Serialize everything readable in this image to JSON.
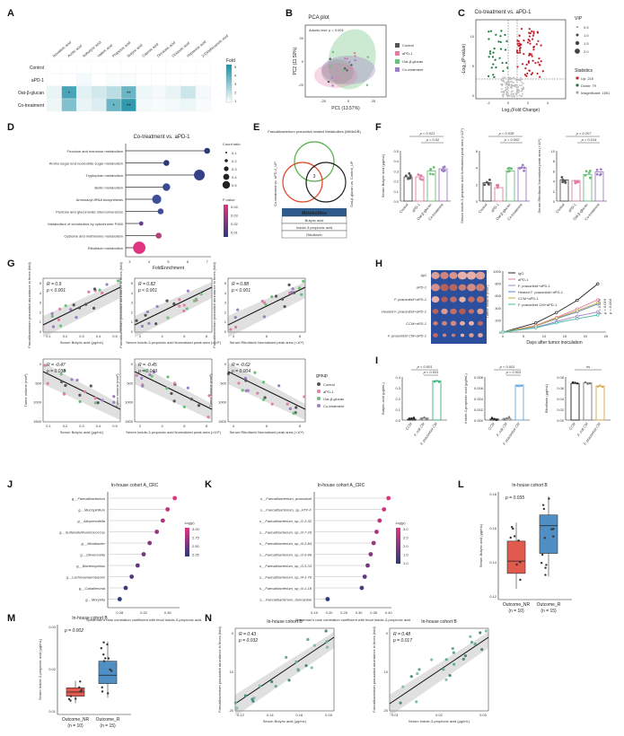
{
  "panels": {
    "A": {
      "label": "A",
      "columns": [
        "Isovaleric acid",
        "Acetic acid",
        "Isobutyric acid",
        "Valeric acid",
        "Propionic acid",
        "Butyric acid",
        "Caproic acid",
        "Decanoic acid",
        "Octanoic acid",
        "Heptanoic acid",
        "2-Ethylhexanoic acid"
      ],
      "rows": [
        "Control",
        "aPD-1",
        "Oat-β-glucan",
        "Co-treatment"
      ],
      "legend_title": "Fold",
      "legend_ticks": [
        "5",
        "4",
        "3",
        "2",
        "1"
      ],
      "cells": [
        [
          1,
          1,
          1,
          1,
          1,
          1,
          1,
          1,
          1,
          1,
          1
        ],
        [
          1,
          1,
          1.2,
          1,
          1.1,
          1.1,
          1,
          1,
          1,
          1,
          1
        ],
        [
          1.4,
          4.2,
          1.5,
          1.8,
          2.2,
          3.6,
          1.3,
          1.2,
          1.4,
          1.9,
          1.2
        ],
        [
          1.3,
          3.2,
          1.4,
          1.6,
          3.6,
          4.6,
          1.2,
          1.1,
          1.2,
          1.3,
          1.1
        ]
      ],
      "stars": [
        {
          "row": 2,
          "col": 1,
          "text": "*"
        },
        {
          "row": 2,
          "col": 5,
          "text": "**"
        },
        {
          "row": 3,
          "col": 4,
          "text": "*"
        },
        {
          "row": 3,
          "col": 5,
          "text": "**"
        }
      ]
    },
    "B": {
      "label": "B",
      "title": "PCA plot",
      "stat": "Adonis test: p = 0.001",
      "xlabel": "PC1 (13.57%)",
      "ylabel": "PC2 (11.50%)",
      "xticks": [
        "-25",
        "0",
        "25"
      ],
      "yticks": [
        "20",
        "0",
        "-20"
      ],
      "legend": [
        {
          "name": "Control",
          "color": "#555555"
        },
        {
          "name": "aPD-1",
          "color": "#e17ea6"
        },
        {
          "name": "Oat-β-glucan",
          "color": "#6cc07a"
        },
        {
          "name": "Co-treatment",
          "color": "#9f7fc4"
        }
      ]
    },
    "C": {
      "label": "C",
      "title": "Co-treatment vs. aPD-1",
      "xlabel": "Log₂(Fold Change)",
      "ylabel": "-Log₁₀(P-value)",
      "xticks": [
        "-2",
        "0",
        "2",
        "4"
      ],
      "yticks": [
        "10",
        "5",
        "0"
      ],
      "vip_title": "VIP",
      "vip_sizes": [
        "0.5",
        "1.0",
        "1.5",
        "2.0"
      ],
      "stats_title": "Statistics",
      "stats": [
        {
          "text": "Up: 215",
          "color": "#c0202a"
        },
        {
          "text": "Down: 79",
          "color": "#1b7a3a"
        },
        {
          "text": "Insignificant: 1551",
          "color": "#aaaaaa"
        }
      ]
    },
    "D": {
      "label": "D",
      "title": "Co-treatment vs. aPD-1",
      "xlabel": "FoldEnrichment",
      "xticks": [
        "3",
        "4",
        "5",
        "6",
        "7"
      ],
      "pathways": [
        {
          "name": "Fructose and mannose metabolism",
          "fe": 7.0,
          "count": 2,
          "color": "#2b3a7a"
        },
        {
          "name": "Amino sugar and nucleotide sugar metabolism",
          "fe": 4.9,
          "count": 2,
          "color": "#2b3a7a"
        },
        {
          "name": "Tryptophan metabolism",
          "fe": 6.6,
          "count": 5,
          "color": "#33408a"
        },
        {
          "name": "Biotin metabolism",
          "fe": 4.9,
          "count": 3,
          "color": "#3a4a90"
        },
        {
          "name": "Aminoacyl-tRNA biosynthesis",
          "fe": 4.4,
          "count": 4,
          "color": "#3f4e98"
        },
        {
          "name": "Pentose and glucuronate interconversions",
          "fe": 4.6,
          "count": 2,
          "color": "#3f4e98"
        },
        {
          "name": "Metabolism of xenobiotics by cytochrome P450",
          "fe": 3.6,
          "count": 1,
          "color": "#6a3f8f"
        },
        {
          "name": "Cysteine and methionine metabolism",
          "fe": 4.5,
          "count": 2,
          "color": "#b2407a"
        },
        {
          "name": "Riboflavin metabolism",
          "fe": 3.5,
          "count": 6,
          "color": "#e0357f"
        }
      ],
      "count_title": "Count ratio",
      "count_labels": [
        "0.1",
        "0.2",
        "0.3",
        "0.4",
        "0.5"
      ],
      "p_title": "P-value",
      "p_labels": [
        "0.04",
        "0.03",
        "0.02",
        "0.01"
      ]
    },
    "E": {
      "label": "E",
      "top_title": "Faecalibacterium prausnitzii related Metabolites (MiMeDB)",
      "left_title": "Co-treatment vs. aPD-1_UP",
      "right_title": "Oat-β-glucan vs. Control_UP",
      "center": "3",
      "table_header": "Metabolites",
      "table_rows": [
        "Butyric acid",
        "Indole-3-propionic acid",
        "Riboflavin"
      ]
    },
    "F": {
      "label": "F",
      "groups": [
        "Control",
        "aPD-1",
        "Oat-β-glucan",
        "Co-treatment"
      ],
      "colors": [
        "#555555",
        "#e17ea6",
        "#6cc07a",
        "#9f7fc4"
      ],
      "plots": [
        {
          "ylabel": "Serum Butyric acid (μg/mL)",
          "yticks": [
            "0.5",
            "0.4",
            "0.3",
            "0.2",
            "0.1",
            "0.0"
          ],
          "pvals": [
            "p = 0.021",
            "p = 0.02"
          ],
          "means": [
            0.24,
            0.24,
            0.3,
            0.32
          ]
        },
        {
          "ylabel": "Serum Indole-3-propionic acid Normalized peak area (×10⁵)",
          "yticks": [
            "6",
            "4",
            "2",
            "0"
          ],
          "pvals": [
            "p = 0.038",
            "p = 0.002"
          ],
          "means": [
            2.2,
            1.6,
            3.6,
            4.0
          ]
        },
        {
          "ylabel": "Serum Riboflavin Normalized peak area (×10⁴)",
          "yticks": [
            "10",
            "8",
            "6",
            "4",
            "2",
            "0"
          ],
          "pvals": [
            "p = 0.207",
            "p = 0.014"
          ],
          "means": [
            4.2,
            4.1,
            5.3,
            5.8
          ]
        }
      ]
    },
    "G": {
      "label": "G",
      "top": [
        {
          "stat": "R = 0.9",
          "p": "p < 0.001",
          "xlabel": "Serum Butyric acid (μg/mL)",
          "ylabel": "Faecalibacterium prausnitzii abundance in feces (fold)",
          "xticks": [
            "0.1",
            "0.2",
            "0.3",
            "0.4",
            "0.5"
          ],
          "yticks": [
            "0",
            "1",
            "2",
            "3",
            "4",
            "5"
          ]
        },
        {
          "stat": "R = 0.82",
          "p": "p < 0.001",
          "xlabel": "Serum Indole-3-propionic acid Normalized peak area (×10⁵)",
          "ylabel": "Faecalibacterium prausnitzii abundance in feces (fold)",
          "xticks": [
            "2",
            "4",
            "6",
            "8"
          ],
          "yticks": [
            "0",
            "1",
            "2",
            "3",
            "4",
            "5"
          ]
        },
        {
          "stat": "R = 0.88",
          "p": "p < 0.001",
          "xlabel": "Serum Riboflavin Normalized peak area (×10⁴)",
          "ylabel": "Faecalibacterium prausnitzii abundance in feces (fold)",
          "xticks": [
            "4",
            "6",
            "8"
          ],
          "yticks": [
            "0",
            "1",
            "2",
            "3",
            "4",
            "5"
          ]
        }
      ],
      "bottom": [
        {
          "stat": "R = -0.47",
          "p": "p = 0.038",
          "xlabel": "Serum Butyric acid (μg/mL)",
          "ylabel": "Tumor volume (mm³)",
          "xticks": [
            "0.1",
            "0.2",
            "0.3",
            "0.4",
            "0.5"
          ],
          "yticks": [
            "1500",
            "1000",
            "500",
            "0"
          ]
        },
        {
          "stat": "R = -0.45",
          "p": "p = 0.049",
          "xlabel": "Serum Indole-3-propionic acid Normalized peak area (×10⁵)",
          "ylabel": "Tumor volume (mm³)",
          "xticks": [
            "2",
            "4",
            "6",
            "8"
          ],
          "yticks": [
            "1500",
            "1000",
            "500",
            "0"
          ]
        },
        {
          "stat": "R = -0.62",
          "p": "p = 0.004",
          "xlabel": "Serum Riboflavin Normalized peak area (×10⁴)",
          "ylabel": "Tumor volume (mm³)",
          "xticks": [
            "4",
            "6",
            "8"
          ],
          "yticks": [
            "1500",
            "1000",
            "500",
            "0"
          ]
        }
      ],
      "legend_title": "group",
      "legend": [
        "Control",
        "aPD-1",
        "Oat-β-glucan",
        "Co-treatment"
      ]
    },
    "H": {
      "label": "H",
      "rows": [
        "IgG",
        "aPD-1",
        "F. prausnitzii+aPD-1",
        "Heated F. prausnitzii+aPD-1",
        "CCM+aPD-1",
        "F. prausnitzii CM+aPD-1"
      ],
      "legend": [
        {
          "name": "IgG",
          "color": "#222222"
        },
        {
          "name": "aPD-1",
          "color": "#e17ea6"
        },
        {
          "name": "F. prausnitzii+aPD-1",
          "color": "#9f7fc4"
        },
        {
          "name": "Heated F. prausnitzii+aPD-1",
          "color": "#5a86c8"
        },
        {
          "name": "CCM+aPD-1",
          "color": "#c8aa3c"
        },
        {
          "name": "F. prausnitzii CM+aPD-1",
          "color": "#3fb8a4"
        }
      ],
      "xlabel": "Days after tumor inoculation",
      "ylabel": "Tumor volume (mm³)",
      "xticks": [
        "0",
        "5",
        "10",
        "15",
        "20",
        "25"
      ],
      "yticks": [
        "1000",
        "800",
        "600",
        "400",
        "200",
        "0"
      ],
      "pvals": [
        "p = 0.004",
        "p = 0.019",
        "p = 0.026"
      ],
      "days": [
        0,
        8,
        13,
        18,
        23
      ],
      "series": [
        [
          0,
          150,
          320,
          520,
          790
        ],
        [
          0,
          110,
          240,
          380,
          530
        ],
        [
          0,
          80,
          170,
          260,
          330
        ],
        [
          0,
          100,
          220,
          330,
          460
        ],
        [
          0,
          100,
          230,
          350,
          480
        ],
        [
          0,
          70,
          150,
          220,
          280
        ]
      ]
    },
    "I": {
      "label": "I",
      "groups": [
        "CCM",
        "F. coli CM",
        "F. prausnitzii CM"
      ],
      "plots": [
        {
          "ylabel": "Butyric acid (μg/mL)",
          "yticks": [
            "0.4",
            "0.3",
            "0.2",
            "0.1",
            "0.0"
          ],
          "pvals": [
            "p < 0.001",
            "p < 0.001"
          ],
          "values": [
            0.01,
            0.02,
            0.41
          ],
          "colors": [
            "#222222",
            "#777777",
            "#3fb07a"
          ]
        },
        {
          "ylabel": "Indole-3-propionic acid (μg/mL)",
          "yticks": [
            "0.008",
            "0.006",
            "0.004",
            "0.002",
            "0.000"
          ],
          "pvals": [
            "p < 0.001",
            "p < 0.001"
          ],
          "values": [
            0.0002,
            0.0003,
            0.0065
          ],
          "colors": [
            "#222222",
            "#777777",
            "#6aa8e0"
          ]
        },
        {
          "ylabel": "Riboflavin (μg/mL)",
          "yticks": [
            "0.08",
            "0.06",
            "0.04",
            "0.02",
            "0.00"
          ],
          "pvals": [
            "ns"
          ],
          "values": [
            0.068,
            0.069,
            0.063
          ],
          "colors": [
            "#222222",
            "#777777",
            "#d4a64a"
          ]
        }
      ]
    },
    "J": {
      "label": "J",
      "title": "In-house cohort A_CRC",
      "xlabel": "Spearman's rank correlation coefficient with fecal Indole-3-propionic acid",
      "xticks": [
        "0.28",
        "0.32",
        "0.36"
      ],
      "genera": [
        {
          "name": "g__Faecalibacterium",
          "r": 0.372,
          "p": 3.2
        },
        {
          "name": "g__Mucispirillum",
          "r": 0.36,
          "p": 3.0
        },
        {
          "name": "g__Alloprevotella",
          "r": 0.352,
          "p": 2.9
        },
        {
          "name": "g__Sutterella/Ruminococcus",
          "r": 0.342,
          "p": 2.8
        },
        {
          "name": "g__Monibacter",
          "r": 0.33,
          "p": 2.7
        },
        {
          "name": "g__Oliverocella",
          "r": 0.32,
          "p": 2.6
        },
        {
          "name": "g__Bacteriophilus",
          "r": 0.31,
          "p": 2.5
        },
        {
          "name": "g__Lachnoanaerobacter",
          "r": 0.3,
          "p": 2.4
        },
        {
          "name": "g__Caballeronia",
          "r": 0.29,
          "p": 2.3
        },
        {
          "name": "g__Moryella",
          "r": 0.28,
          "p": 2.2
        }
      ],
      "legend_title": "-log(p)",
      "legend_ticks": [
        "3.00",
        "2.75",
        "2.50",
        "2.25"
      ]
    },
    "K": {
      "label": "K",
      "title": "In-house cohort A_CRC",
      "xlabel": "Spearman's rank correlation coefficient with fecal Indole-3-propionic acid",
      "xticks": [
        "0.15",
        "0.20",
        "0.25",
        "0.30",
        "0.35",
        "0.40"
      ],
      "species": [
        {
          "name": "s__Faecalibacterium_prausnitzii",
          "r": 0.4,
          "p": 3.0
        },
        {
          "name": "s__Faecalibacterium_sp_HTF-F",
          "r": 0.385,
          "p": 2.8
        },
        {
          "name": "s__Faecalibacterium_sp_l2-3-32",
          "r": 0.37,
          "p": 2.6
        },
        {
          "name": "s__Faecalibacterium_sp_i3-7-29",
          "r": 0.36,
          "p": 2.4
        },
        {
          "name": "s__Faecalibacterium_sp_i4-3-84",
          "r": 0.35,
          "p": 2.2
        },
        {
          "name": "s__Faecalibacterium_sp_i3-3-89",
          "r": 0.34,
          "p": 2.0
        },
        {
          "name": "s__Faecalibacterium_sp_i3-3-33",
          "r": 0.33,
          "p": 1.8
        },
        {
          "name": "s__Faecalibacterium_sp_i4-1-79",
          "r": 0.32,
          "p": 1.6
        },
        {
          "name": "s__Faecalibacterium_sp_i4-1-18",
          "r": 0.31,
          "p": 1.4
        },
        {
          "name": "s__Faecalibacterium_duncaniae",
          "r": 0.195,
          "p": 1.0
        }
      ],
      "legend_title": "-log(p)",
      "legend_ticks": [
        "3.0",
        "2.5",
        "2.0",
        "1.5",
        "1.0"
      ]
    },
    "L": {
      "label": "L",
      "title": "In-house cohort B",
      "p": "p = 0.035",
      "ylabel": "Serum Butyric acid (μg/mL)",
      "yticks": [
        "0.18",
        "0.16",
        "0.14",
        "0.12"
      ],
      "groups": [
        {
          "name": "Outcome_NR",
          "n": "(n = 10)",
          "color": "#e05a4e",
          "q1": 0.132,
          "med": 0.14,
          "q3": 0.153,
          "lo": 0.122,
          "hi": 0.165
        },
        {
          "name": "Outcome_R",
          "n": "(n = 15)",
          "color": "#4f8fc4",
          "q1": 0.145,
          "med": 0.163,
          "q3": 0.17,
          "lo": 0.13,
          "hi": 0.182
        }
      ]
    },
    "M": {
      "label": "M",
      "title": "In-house cohort B",
      "p": "p = 0.002",
      "ylabel": "Serum Indole-3-propionic acid (μg/mL)",
      "yticks": [
        "0.03",
        "0.02",
        "0.01"
      ],
      "groups": [
        {
          "name": "Outcome_NR",
          "n": "(n = 10)",
          "color": "#e05a4e",
          "q1": 0.0065,
          "med": 0.008,
          "q3": 0.0095,
          "lo": 0.004,
          "hi": 0.012
        },
        {
          "name": "Outcome_R",
          "n": "(n = 15)",
          "color": "#4f8fc4",
          "q1": 0.011,
          "med": 0.014,
          "q3": 0.019,
          "lo": 0.006,
          "hi": 0.026
        }
      ]
    },
    "N": {
      "label": "N",
      "plots": [
        {
          "title": "In-house cohort B",
          "stat": "R = 0.43",
          "p": "p = 0.032",
          "xlabel": "Serum Butyric acid (μg/mL)",
          "ylabel": "Faecalibacterium prausnitzii abundance in feces (fold)",
          "xticks": [
            "0.12",
            "0.14",
            "0.16",
            "0.18"
          ],
          "yticks": [
            "20",
            "10",
            "0"
          ]
        },
        {
          "title": "In-house cohort B",
          "stat": "R = 0.48",
          "p": "p = 0.017",
          "xlabel": "Serum Indole-3-propionic acid (μg/mL)",
          "ylabel": "Faecalibacterium prausnitzii abundance in feces (fold)",
          "xticks": [
            "0.01",
            "0.02",
            "0.03"
          ],
          "yticks": [
            "20",
            "10",
            "0"
          ]
        }
      ]
    }
  }
}
